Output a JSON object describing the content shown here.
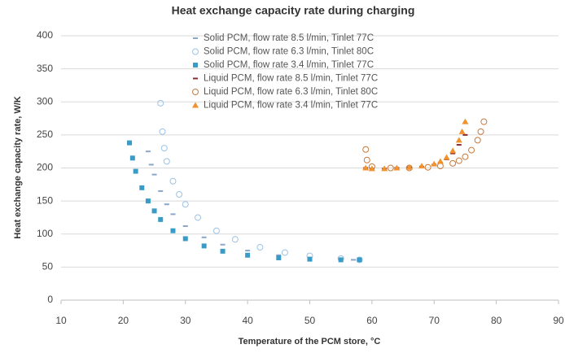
{
  "chart_data": {
    "type": "scatter",
    "title": "Heat exchange capacity rate during charging",
    "x_label": "Temperature of the PCM store, °C",
    "y_label": "Heat exchange capacity rate,  W/K",
    "xlim": [
      10,
      90
    ],
    "xticks": [
      10,
      20,
      30,
      40,
      50,
      60,
      70,
      80,
      90
    ],
    "ylim": [
      0,
      400
    ],
    "yticks": [
      0,
      50,
      100,
      150,
      200,
      250,
      300,
      350,
      400
    ],
    "grid": true,
    "legend": "top",
    "series": [
      {
        "name": "Solid PCM, flow rate 8.5 l/min, Tinlet 77C",
        "color": "#8aa6c8",
        "marker": "dash",
        "x": [
          24,
          24.5,
          25,
          26,
          27,
          28,
          30,
          33,
          36,
          40,
          45,
          50,
          55,
          57
        ],
        "values": [
          225,
          205,
          190,
          165,
          145,
          130,
          112,
          95,
          84,
          75,
          68,
          64,
          62,
          61
        ]
      },
      {
        "name": "Solid PCM, flow rate 6.3 l/min, Tinlet 80C",
        "color": "#9cc3e6",
        "marker": "circle-open",
        "x": [
          26,
          26.3,
          26.6,
          27,
          28,
          29,
          30,
          32,
          35,
          38,
          42,
          46,
          50,
          55,
          58
        ],
        "values": [
          298,
          255,
          230,
          210,
          180,
          160,
          145,
          125,
          105,
          92,
          80,
          72,
          67,
          63,
          61
        ]
      },
      {
        "name": "Solid PCM, flow rate 3.4 l/min, Tinlet 77C",
        "color": "#3a9cc6",
        "marker": "square",
        "x": [
          21,
          21.5,
          22,
          23,
          24,
          25,
          26,
          28,
          30,
          33,
          36,
          40,
          45,
          50,
          55,
          58
        ],
        "values": [
          238,
          215,
          195,
          170,
          150,
          135,
          122,
          105,
          93,
          82,
          74,
          68,
          64,
          62,
          61,
          61
        ]
      },
      {
        "name": "Liquid PCM, flow rate 8.5 l/min, Tinlet 77C",
        "color": "#8b2a2a",
        "marker": "dash",
        "x": [
          59,
          60,
          62,
          64,
          66,
          68,
          70,
          71,
          72,
          73,
          74,
          75
        ],
        "values": [
          200,
          199,
          199,
          200,
          201,
          202,
          205,
          208,
          213,
          222,
          235,
          250
        ]
      },
      {
        "name": "Liquid PCM, flow rate 6.3 l/min, Tinlet 80C",
        "color": "#c97a3c",
        "marker": "circle-open",
        "x": [
          59,
          59.2,
          60,
          63,
          66,
          69,
          71,
          73,
          74,
          75,
          76,
          77,
          77.5,
          78
        ],
        "values": [
          228,
          212,
          202,
          200,
          200,
          201,
          203,
          207,
          211,
          217,
          227,
          242,
          255,
          270
        ]
      },
      {
        "name": "Liquid PCM, flow rate 3.4 l/min, Tinlet 77C",
        "color": "#f0922e",
        "marker": "triangle",
        "x": [
          59,
          60,
          62,
          64,
          66,
          68,
          70,
          71,
          72,
          73,
          74,
          74.5,
          75
        ],
        "values": [
          200,
          199,
          199,
          200,
          201,
          203,
          206,
          210,
          216,
          226,
          242,
          255,
          270
        ]
      }
    ]
  }
}
